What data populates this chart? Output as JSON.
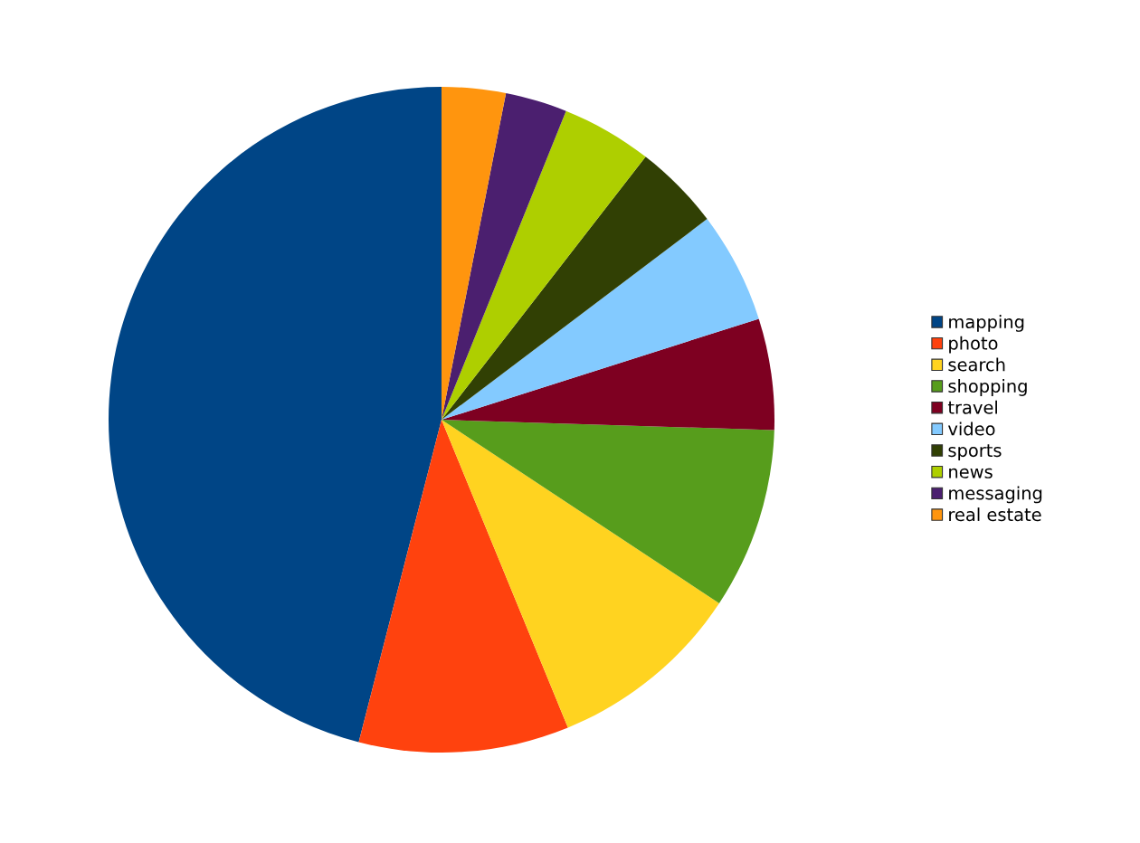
{
  "chart_data": {
    "type": "pie",
    "categories": [
      "mapping",
      "photo",
      "search",
      "shopping",
      "travel",
      "video",
      "sports",
      "news",
      "messaging",
      "real estate"
    ],
    "values": [
      46,
      10.2,
      9.5,
      8.8,
      5.4,
      5.4,
      4.2,
      4.4,
      3,
      3.1
    ],
    "colors": [
      "#004586",
      "#ff420e",
      "#ffd320",
      "#579d1c",
      "#7e0021",
      "#83caff",
      "#314004",
      "#aecf00",
      "#4b1f6f",
      "#ff950e"
    ],
    "legend": "right"
  }
}
